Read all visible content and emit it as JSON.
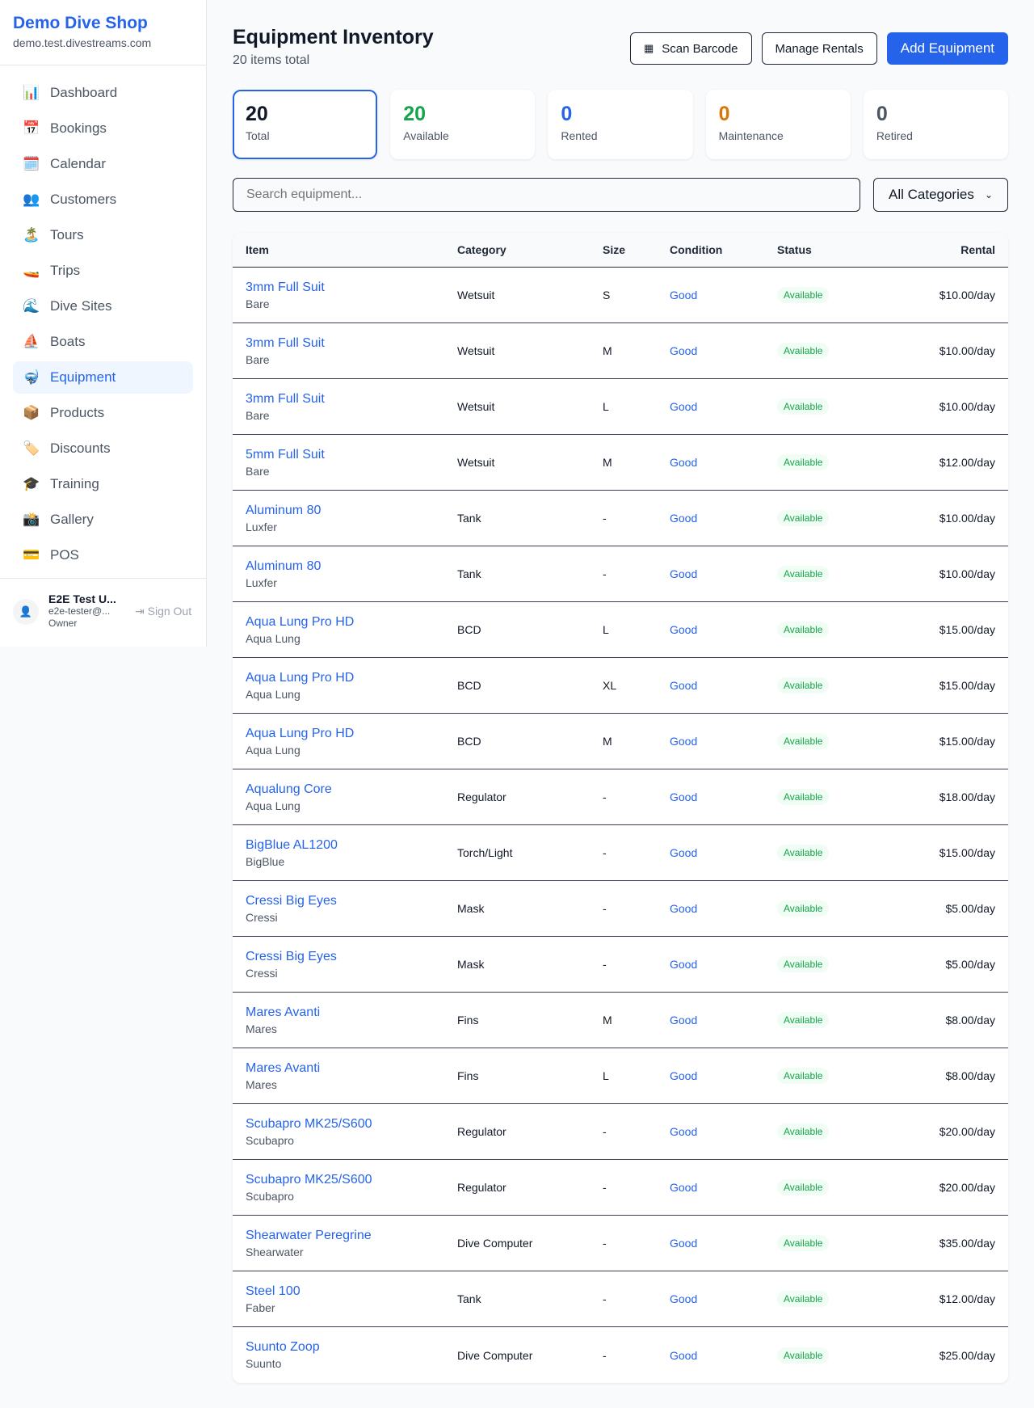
{
  "brand": {
    "name": "Demo Dive Shop",
    "domain": "demo.test.divestreams.com"
  },
  "nav": [
    {
      "icon": "📊",
      "label": "Dashboard"
    },
    {
      "icon": "📅",
      "label": "Bookings"
    },
    {
      "icon": "🗓️",
      "label": "Calendar"
    },
    {
      "icon": "👥",
      "label": "Customers"
    },
    {
      "icon": "🏝️",
      "label": "Tours"
    },
    {
      "icon": "🚤",
      "label": "Trips"
    },
    {
      "icon": "🌊",
      "label": "Dive Sites"
    },
    {
      "icon": "⛵",
      "label": "Boats"
    },
    {
      "icon": "🤿",
      "label": "Equipment",
      "active": true
    },
    {
      "icon": "📦",
      "label": "Products"
    },
    {
      "icon": "🏷️",
      "label": "Discounts"
    },
    {
      "icon": "🎓",
      "label": "Training"
    },
    {
      "icon": "📸",
      "label": "Gallery"
    },
    {
      "icon": "💳",
      "label": "POS"
    }
  ],
  "user": {
    "name": "E2E Test U...",
    "email": "e2e-tester@...",
    "role": "Owner",
    "signout": "Sign Out"
  },
  "header": {
    "title": "Equipment Inventory",
    "subtitle": "20 items total",
    "scan": "Scan Barcode",
    "manage": "Manage Rentals",
    "add": "Add Equipment"
  },
  "stats": [
    {
      "value": "20",
      "label": "Total",
      "color": "#111827"
    },
    {
      "value": "20",
      "label": "Available",
      "color": "#16a34a"
    },
    {
      "value": "0",
      "label": "Rented",
      "color": "#2563eb"
    },
    {
      "value": "0",
      "label": "Maintenance",
      "color": "#d97706"
    },
    {
      "value": "0",
      "label": "Retired",
      "color": "#4b5563"
    }
  ],
  "filters": {
    "search_placeholder": "Search equipment...",
    "category": "All Categories"
  },
  "table": {
    "columns": [
      "Item",
      "Category",
      "Size",
      "Condition",
      "Status",
      "Rental"
    ],
    "rows": [
      [
        "3mm Full Suit",
        "Bare",
        "Wetsuit",
        "S",
        "Good",
        "Available",
        "$10.00/day"
      ],
      [
        "3mm Full Suit",
        "Bare",
        "Wetsuit",
        "M",
        "Good",
        "Available",
        "$10.00/day"
      ],
      [
        "3mm Full Suit",
        "Bare",
        "Wetsuit",
        "L",
        "Good",
        "Available",
        "$10.00/day"
      ],
      [
        "5mm Full Suit",
        "Bare",
        "Wetsuit",
        "M",
        "Good",
        "Available",
        "$12.00/day"
      ],
      [
        "Aluminum 80",
        "Luxfer",
        "Tank",
        "-",
        "Good",
        "Available",
        "$10.00/day"
      ],
      [
        "Aluminum 80",
        "Luxfer",
        "Tank",
        "-",
        "Good",
        "Available",
        "$10.00/day"
      ],
      [
        "Aqua Lung Pro HD",
        "Aqua Lung",
        "BCD",
        "L",
        "Good",
        "Available",
        "$15.00/day"
      ],
      [
        "Aqua Lung Pro HD",
        "Aqua Lung",
        "BCD",
        "XL",
        "Good",
        "Available",
        "$15.00/day"
      ],
      [
        "Aqua Lung Pro HD",
        "Aqua Lung",
        "BCD",
        "M",
        "Good",
        "Available",
        "$15.00/day"
      ],
      [
        "Aqualung Core",
        "Aqua Lung",
        "Regulator",
        "-",
        "Good",
        "Available",
        "$18.00/day"
      ],
      [
        "BigBlue AL1200",
        "BigBlue",
        "Torch/Light",
        "-",
        "Good",
        "Available",
        "$15.00/day"
      ],
      [
        "Cressi Big Eyes",
        "Cressi",
        "Mask",
        "-",
        "Good",
        "Available",
        "$5.00/day"
      ],
      [
        "Cressi Big Eyes",
        "Cressi",
        "Mask",
        "-",
        "Good",
        "Available",
        "$5.00/day"
      ],
      [
        "Mares Avanti",
        "Mares",
        "Fins",
        "M",
        "Good",
        "Available",
        "$8.00/day"
      ],
      [
        "Mares Avanti",
        "Mares",
        "Fins",
        "L",
        "Good",
        "Available",
        "$8.00/day"
      ],
      [
        "Scubapro MK25/S600",
        "Scubapro",
        "Regulator",
        "-",
        "Good",
        "Available",
        "$20.00/day"
      ],
      [
        "Scubapro MK25/S600",
        "Scubapro",
        "Regulator",
        "-",
        "Good",
        "Available",
        "$20.00/day"
      ],
      [
        "Shearwater Peregrine",
        "Shearwater",
        "Dive Computer",
        "-",
        "Good",
        "Available",
        "$35.00/day"
      ],
      [
        "Steel 100",
        "Faber",
        "Tank",
        "-",
        "Good",
        "Available",
        "$12.00/day"
      ],
      [
        "Suunto Zoop",
        "Suunto",
        "Dive Computer",
        "-",
        "Good",
        "Available",
        "$25.00/day"
      ]
    ]
  }
}
